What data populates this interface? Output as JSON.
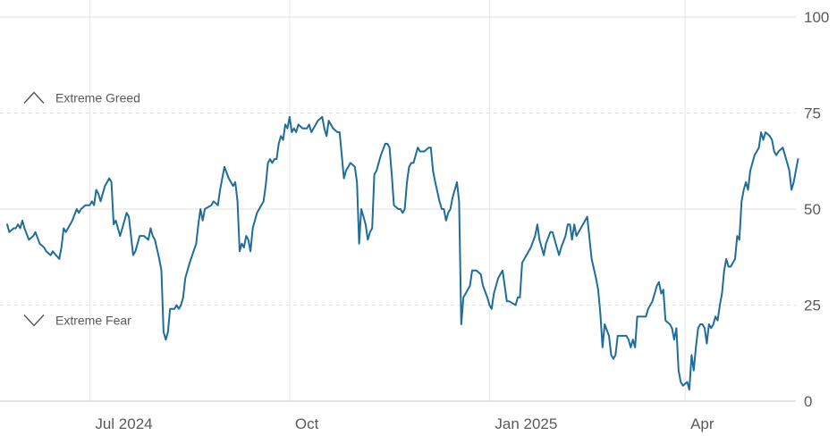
{
  "chart_data": {
    "type": "line",
    "title": "",
    "xlabel": "",
    "ylabel": "",
    "ylim": [
      0,
      100
    ],
    "x_range": [
      "2024-05-24",
      "2025-05-22"
    ],
    "y_ticks": [
      "100",
      "75",
      "50",
      "25",
      "0"
    ],
    "x_ticks": [
      {
        "label": "Jul 2024",
        "date": "2024-07-01"
      },
      {
        "label": "Oct",
        "date": "2024-10-01"
      },
      {
        "label": "Jan 2025",
        "date": "2025-01-01"
      },
      {
        "label": "Apr",
        "date": "2025-04-01"
      }
    ],
    "zones": [
      {
        "label": "Extreme Greed",
        "value": 75,
        "arrow": "up",
        "line_style": "dashed"
      },
      {
        "label": "Extreme Fear",
        "value": 25,
        "arrow": "down",
        "line_style": "dashed"
      }
    ],
    "grid": {
      "horizontal": true,
      "vertical": true
    },
    "line_color": "#1f6d99",
    "series": [
      {
        "points": [
          [
            "2024-05-24",
            46
          ],
          [
            "2024-05-25",
            44
          ],
          [
            "2024-05-27",
            45
          ],
          [
            "2024-05-28",
            45
          ],
          [
            "2024-05-29",
            46
          ],
          [
            "2024-05-30",
            45
          ],
          [
            "2024-05-31",
            47
          ],
          [
            "2024-06-01",
            45
          ],
          [
            "2024-06-03",
            42
          ],
          [
            "2024-06-05",
            43
          ],
          [
            "2024-06-06",
            44
          ],
          [
            "2024-06-08",
            41
          ],
          [
            "2024-06-10",
            40
          ],
          [
            "2024-06-11",
            39
          ],
          [
            "2024-06-13",
            38
          ],
          [
            "2024-06-14",
            39
          ],
          [
            "2024-06-17",
            37
          ],
          [
            "2024-06-18",
            40
          ],
          [
            "2024-06-19",
            45
          ],
          [
            "2024-06-20",
            44
          ],
          [
            "2024-06-23",
            47
          ],
          [
            "2024-06-25",
            50
          ],
          [
            "2024-06-26",
            49
          ],
          [
            "2024-06-27",
            50
          ],
          [
            "2024-06-29",
            51
          ],
          [
            "2024-07-01",
            51
          ],
          [
            "2024-07-02",
            52
          ],
          [
            "2024-07-03",
            51
          ],
          [
            "2024-07-04",
            55
          ],
          [
            "2024-07-05",
            54
          ],
          [
            "2024-07-06",
            52
          ],
          [
            "2024-07-08",
            56
          ],
          [
            "2024-07-10",
            58
          ],
          [
            "2024-07-11",
            57
          ],
          [
            "2024-07-12",
            46
          ],
          [
            "2024-07-13",
            47
          ],
          [
            "2024-07-15",
            43
          ],
          [
            "2024-07-17",
            47
          ],
          [
            "2024-07-18",
            49
          ],
          [
            "2024-07-19",
            48
          ],
          [
            "2024-07-21",
            38
          ],
          [
            "2024-07-22",
            39
          ],
          [
            "2024-07-24",
            43
          ],
          [
            "2024-07-26",
            43
          ],
          [
            "2024-07-28",
            42
          ],
          [
            "2024-07-29",
            45
          ],
          [
            "2024-07-30",
            43
          ],
          [
            "2024-07-31",
            42
          ],
          [
            "2024-08-02",
            37
          ],
          [
            "2024-08-03",
            34
          ],
          [
            "2024-08-04",
            18
          ],
          [
            "2024-08-05",
            16
          ],
          [
            "2024-08-06",
            18
          ],
          [
            "2024-08-07",
            24
          ],
          [
            "2024-08-09",
            24
          ],
          [
            "2024-08-10",
            25
          ],
          [
            "2024-08-11",
            24
          ],
          [
            "2024-08-12",
            25
          ],
          [
            "2024-08-13",
            27
          ],
          [
            "2024-08-14",
            32
          ],
          [
            "2024-08-16",
            36
          ],
          [
            "2024-08-19",
            41
          ],
          [
            "2024-08-20",
            46
          ],
          [
            "2024-08-21",
            50
          ],
          [
            "2024-08-22",
            47
          ],
          [
            "2024-08-23",
            50
          ],
          [
            "2024-08-26",
            51
          ],
          [
            "2024-08-27",
            52
          ],
          [
            "2024-08-29",
            51
          ],
          [
            "2024-08-30",
            55
          ],
          [
            "2024-09-01",
            61
          ],
          [
            "2024-09-03",
            58
          ],
          [
            "2024-09-05",
            56
          ],
          [
            "2024-09-06",
            57
          ],
          [
            "2024-09-07",
            52
          ],
          [
            "2024-09-08",
            39
          ],
          [
            "2024-09-09",
            41
          ],
          [
            "2024-09-10",
            40
          ],
          [
            "2024-09-11",
            43
          ],
          [
            "2024-09-12",
            42
          ],
          [
            "2024-09-13",
            39
          ],
          [
            "2024-09-14",
            45
          ],
          [
            "2024-09-16",
            49
          ],
          [
            "2024-09-18",
            51
          ],
          [
            "2024-09-19",
            52
          ],
          [
            "2024-09-20",
            56
          ],
          [
            "2024-09-21",
            62
          ],
          [
            "2024-09-22",
            63
          ],
          [
            "2024-09-23",
            62
          ],
          [
            "2024-09-24",
            63
          ],
          [
            "2024-09-25",
            63
          ],
          [
            "2024-09-26",
            67
          ],
          [
            "2024-09-27",
            69
          ],
          [
            "2024-09-28",
            68
          ],
          [
            "2024-09-29",
            72
          ],
          [
            "2024-09-30",
            71
          ],
          [
            "2024-10-01",
            74
          ],
          [
            "2024-10-02",
            70
          ],
          [
            "2024-10-03",
            71
          ],
          [
            "2024-10-04",
            70
          ],
          [
            "2024-10-05",
            72
          ],
          [
            "2024-10-07",
            71
          ],
          [
            "2024-10-09",
            71
          ],
          [
            "2024-10-10",
            72
          ],
          [
            "2024-10-11",
            70
          ],
          [
            "2024-10-12",
            71
          ],
          [
            "2024-10-14",
            73
          ],
          [
            "2024-10-16",
            74
          ],
          [
            "2024-10-17",
            71
          ],
          [
            "2024-10-18",
            69
          ],
          [
            "2024-10-19",
            73
          ],
          [
            "2024-10-21",
            71
          ],
          [
            "2024-10-23",
            70
          ],
          [
            "2024-10-24",
            70
          ],
          [
            "2024-10-26",
            58
          ],
          [
            "2024-10-27",
            60
          ],
          [
            "2024-10-29",
            62
          ],
          [
            "2024-10-31",
            61
          ],
          [
            "2024-11-01",
            57
          ],
          [
            "2024-11-02",
            41
          ],
          [
            "2024-11-03",
            50
          ],
          [
            "2024-11-04",
            48
          ],
          [
            "2024-11-05",
            46
          ],
          [
            "2024-11-06",
            42
          ],
          [
            "2024-11-07",
            44
          ],
          [
            "2024-11-08",
            45
          ],
          [
            "2024-11-09",
            59
          ],
          [
            "2024-11-10",
            60
          ],
          [
            "2024-11-12",
            64
          ],
          [
            "2024-11-14",
            67
          ],
          [
            "2024-11-15",
            67
          ],
          [
            "2024-11-16",
            66
          ],
          [
            "2024-11-17",
            59
          ],
          [
            "2024-11-18",
            51
          ],
          [
            "2024-11-20",
            50
          ],
          [
            "2024-11-21",
            50
          ],
          [
            "2024-11-22",
            49
          ],
          [
            "2024-11-23",
            50
          ],
          [
            "2024-11-24",
            57
          ],
          [
            "2024-11-25",
            61
          ],
          [
            "2024-11-26",
            62
          ],
          [
            "2024-11-27",
            62
          ],
          [
            "2024-11-28",
            64
          ],
          [
            "2024-11-29",
            66
          ],
          [
            "2024-11-30",
            65
          ],
          [
            "2024-12-02",
            65
          ],
          [
            "2024-12-04",
            66
          ],
          [
            "2024-12-05",
            66
          ],
          [
            "2024-12-06",
            60
          ],
          [
            "2024-12-07",
            57
          ],
          [
            "2024-12-09",
            52
          ],
          [
            "2024-12-10",
            50
          ],
          [
            "2024-12-11",
            50
          ],
          [
            "2024-12-12",
            47
          ],
          [
            "2024-12-13",
            49
          ],
          [
            "2024-12-14",
            50
          ],
          [
            "2024-12-15",
            53
          ],
          [
            "2024-12-17",
            57
          ],
          [
            "2024-12-18",
            52
          ],
          [
            "2024-12-19",
            20
          ],
          [
            "2024-12-20",
            27
          ],
          [
            "2024-12-21",
            28
          ],
          [
            "2024-12-22",
            29
          ],
          [
            "2024-12-23",
            30
          ],
          [
            "2024-12-24",
            34
          ],
          [
            "2024-12-26",
            34
          ],
          [
            "2024-12-28",
            33
          ],
          [
            "2024-12-29",
            30
          ],
          [
            "2024-12-31",
            27
          ],
          [
            "2025-01-01",
            25
          ],
          [
            "2025-01-02",
            24
          ],
          [
            "2025-01-03",
            28
          ],
          [
            "2025-01-05",
            32
          ],
          [
            "2025-01-07",
            34
          ],
          [
            "2025-01-08",
            30
          ],
          [
            "2025-01-09",
            26
          ],
          [
            "2025-01-10",
            26
          ],
          [
            "2025-01-13",
            25
          ],
          [
            "2025-01-14",
            27
          ],
          [
            "2025-01-15",
            27
          ],
          [
            "2025-01-16",
            36
          ],
          [
            "2025-01-18",
            38
          ],
          [
            "2025-01-20",
            40
          ],
          [
            "2025-01-22",
            43
          ],
          [
            "2025-01-23",
            46
          ],
          [
            "2025-01-24",
            42
          ],
          [
            "2025-01-26",
            38
          ],
          [
            "2025-01-27",
            41
          ],
          [
            "2025-01-29",
            44
          ],
          [
            "2025-01-30",
            44
          ],
          [
            "2025-02-01",
            40
          ],
          [
            "2025-02-02",
            38
          ],
          [
            "2025-02-03",
            40
          ],
          [
            "2025-02-05",
            43
          ],
          [
            "2025-02-06",
            46
          ],
          [
            "2025-02-07",
            46
          ],
          [
            "2025-02-08",
            42
          ],
          [
            "2025-02-09",
            46
          ],
          [
            "2025-02-10",
            43
          ],
          [
            "2025-02-12",
            45
          ],
          [
            "2025-02-14",
            47
          ],
          [
            "2025-02-15",
            48
          ],
          [
            "2025-02-17",
            37
          ],
          [
            "2025-02-19",
            32
          ],
          [
            "2025-02-20",
            29
          ],
          [
            "2025-02-21",
            23
          ],
          [
            "2025-02-22",
            14
          ],
          [
            "2025-02-23",
            20
          ],
          [
            "2025-02-25",
            17
          ],
          [
            "2025-02-26",
            12
          ],
          [
            "2025-02-27",
            11
          ],
          [
            "2025-02-28",
            12
          ],
          [
            "2025-03-01",
            17
          ],
          [
            "2025-03-03",
            17
          ],
          [
            "2025-03-05",
            17
          ],
          [
            "2025-03-06",
            16
          ],
          [
            "2025-03-07",
            14
          ],
          [
            "2025-03-08",
            16
          ],
          [
            "2025-03-09",
            14
          ],
          [
            "2025-03-10",
            22
          ],
          [
            "2025-03-11",
            22
          ],
          [
            "2025-03-13",
            22
          ],
          [
            "2025-03-14",
            22
          ],
          [
            "2025-03-15",
            24
          ],
          [
            "2025-03-17",
            26
          ],
          [
            "2025-03-18",
            28
          ],
          [
            "2025-03-19",
            30
          ],
          [
            "2025-03-20",
            31
          ],
          [
            "2025-03-21",
            28
          ],
          [
            "2025-03-22",
            29
          ],
          [
            "2025-03-23",
            21
          ],
          [
            "2025-03-25",
            20
          ],
          [
            "2025-03-26",
            19
          ],
          [
            "2025-03-27",
            16
          ],
          [
            "2025-03-28",
            19
          ],
          [
            "2025-03-29",
            8
          ],
          [
            "2025-03-30",
            5
          ],
          [
            "2025-03-31",
            4
          ],
          [
            "2025-04-02",
            5
          ],
          [
            "2025-04-03",
            3
          ],
          [
            "2025-04-04",
            12
          ],
          [
            "2025-04-05",
            8
          ],
          [
            "2025-04-06",
            14
          ],
          [
            "2025-04-07",
            19
          ],
          [
            "2025-04-08",
            20
          ],
          [
            "2025-04-09",
            20
          ],
          [
            "2025-04-10",
            19
          ],
          [
            "2025-04-11",
            15
          ],
          [
            "2025-04-12",
            20
          ],
          [
            "2025-04-13",
            19
          ],
          [
            "2025-04-14",
            20
          ],
          [
            "2025-04-15",
            22
          ],
          [
            "2025-04-16",
            21
          ],
          [
            "2025-04-17",
            25
          ],
          [
            "2025-04-18",
            28
          ],
          [
            "2025-04-19",
            34
          ],
          [
            "2025-04-20",
            37
          ],
          [
            "2025-04-21",
            35
          ],
          [
            "2025-04-22",
            35
          ],
          [
            "2025-04-23",
            36
          ],
          [
            "2025-04-24",
            37
          ],
          [
            "2025-04-25",
            43
          ],
          [
            "2025-04-26",
            42
          ],
          [
            "2025-04-27",
            52
          ],
          [
            "2025-04-28",
            55
          ],
          [
            "2025-04-29",
            57
          ],
          [
            "2025-04-30",
            55
          ],
          [
            "2025-05-01",
            60
          ],
          [
            "2025-05-03",
            64
          ],
          [
            "2025-05-05",
            66
          ],
          [
            "2025-05-06",
            70
          ],
          [
            "2025-05-07",
            68
          ],
          [
            "2025-05-08",
            70
          ],
          [
            "2025-05-10",
            69
          ],
          [
            "2025-05-11",
            68
          ],
          [
            "2025-05-12",
            65
          ],
          [
            "2025-05-13",
            64
          ],
          [
            "2025-05-14",
            65
          ],
          [
            "2025-05-16",
            66
          ],
          [
            "2025-05-18",
            62
          ],
          [
            "2025-05-19",
            60
          ],
          [
            "2025-05-20",
            55
          ],
          [
            "2025-05-21",
            57
          ],
          [
            "2025-05-22",
            60
          ],
          [
            "2025-05-23",
            63
          ]
        ]
      }
    ]
  }
}
